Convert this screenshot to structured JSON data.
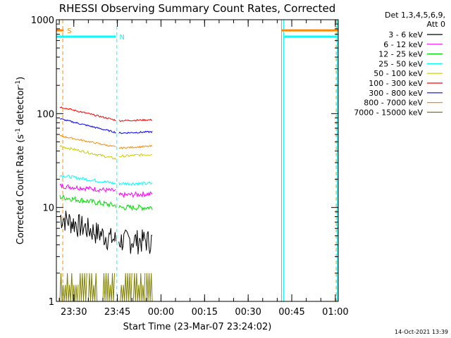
{
  "chart_data": {
    "type": "line",
    "title": "RHESSI Observing Summary Count Rates, Corrected",
    "xlabel": "Start Time (23-Mar-07 23:24:02)",
    "ylabel_prefix": "Corrected Count Rate (s",
    "ylabel_sup1": "-1",
    "ylabel_mid": " detector",
    "ylabel_sup2": "-1",
    "ylabel_suffix": ")",
    "xlim_minutes": [
      0,
      97
    ],
    "ylim": [
      1,
      1000
    ],
    "yscale": "log",
    "x_ticks": [
      {
        "label": "23:30",
        "t": 6
      },
      {
        "label": "23:45",
        "t": 21
      },
      {
        "label": "00:00",
        "t": 36
      },
      {
        "label": "00:15",
        "t": 51
      },
      {
        "label": "00:30",
        "t": 66
      },
      {
        "label": "00:45",
        "t": 81
      },
      {
        "label": "01:00",
        "t": 96
      }
    ],
    "y_ticks": [
      {
        "label": "1",
        "v": 1
      },
      {
        "label": "10",
        "v": 10
      },
      {
        "label": "100",
        "v": 100
      },
      {
        "label": "1000",
        "v": 1000
      }
    ],
    "legend_header": [
      "Det 1,3,4,5,6,9,",
      "Att 0"
    ],
    "timestamp": "14-Oct-2021 13:39",
    "series": [
      {
        "name": "3 - 6 keV",
        "color": "#000000",
        "segments": [
          [
            1.2,
            20.5,
            8.0,
            4.5,
            0.3
          ],
          [
            21.5,
            33.0,
            4.5,
            4.5,
            0.3
          ]
        ]
      },
      {
        "name": "6 - 12 keV",
        "color": "#ff00ff",
        "segments": [
          [
            1.2,
            20.5,
            17,
            15,
            0.06
          ],
          [
            21.5,
            33.0,
            13.5,
            14,
            0.06
          ]
        ]
      },
      {
        "name": "12 - 25 keV",
        "color": "#00dd00",
        "segments": [
          [
            1.2,
            20.5,
            13,
            10.5,
            0.07
          ],
          [
            21.5,
            33.0,
            10,
            10,
            0.07
          ]
        ]
      },
      {
        "name": "25 - 50 keV",
        "color": "#00ffff",
        "segments": [
          [
            1.2,
            20.5,
            22,
            18,
            0.04
          ],
          [
            21.5,
            33.0,
            18,
            18,
            0.04
          ]
        ]
      },
      {
        "name": "50 - 100 keV",
        "color": "#cccc00",
        "segments": [
          [
            1.2,
            20.5,
            45,
            33,
            0.03
          ],
          [
            21.5,
            33.0,
            35,
            37,
            0.03
          ]
        ]
      },
      {
        "name": "100 - 300 keV",
        "color": "#ff0000",
        "segments": [
          [
            1.2,
            20.5,
            118,
            85,
            0.02
          ],
          [
            21.5,
            33.0,
            84,
            86,
            0.02
          ]
        ]
      },
      {
        "name": "300 - 800 keV",
        "color": "#0000ff",
        "segments": [
          [
            1.2,
            20.5,
            88,
            63,
            0.02
          ],
          [
            21.5,
            33.0,
            62,
            64,
            0.02
          ]
        ]
      },
      {
        "name": "800 - 7000 keV",
        "color": "#ff8800",
        "segments": [
          [
            1.2,
            20.5,
            58,
            44,
            0.02
          ],
          [
            21.5,
            33.0,
            43,
            45,
            0.02
          ]
        ]
      },
      {
        "name": "7000 - 15000 keV",
        "color": "#808000",
        "segments": [],
        "bursts": [
          [
            1.2,
            7.5
          ],
          [
            7.8,
            10.5
          ],
          [
            11.0,
            14.0
          ],
          [
            16.0,
            20.0
          ],
          [
            22.0,
            26.0
          ],
          [
            26.5,
            30.5
          ],
          [
            30.8,
            33.0
          ]
        ]
      }
    ],
    "flags": [
      {
        "label": "S",
        "color": "#ff8800",
        "level": 770,
        "spans": [
          [
            0,
            2.5
          ],
          [
            77.5,
            97
          ]
        ]
      },
      {
        "label": "N",
        "color": "#00ffff",
        "level": 660,
        "spans": [
          [
            0,
            20.5
          ],
          [
            78.5,
            96.5
          ]
        ]
      }
    ],
    "vlines": [
      {
        "t": 2.2,
        "color": "#ff8800",
        "dashed": true
      },
      {
        "t": 20.8,
        "color": "#00ffff",
        "dashed": true
      },
      {
        "t": 77.5,
        "color": "#ff8800",
        "dashed": false
      },
      {
        "t": 78.2,
        "color": "#00ffff",
        "dashed": false
      },
      {
        "t": 96.3,
        "color": "#ff8800",
        "dashed": true
      },
      {
        "t": 96.7,
        "color": "#00ffff",
        "dashed": false
      }
    ]
  }
}
